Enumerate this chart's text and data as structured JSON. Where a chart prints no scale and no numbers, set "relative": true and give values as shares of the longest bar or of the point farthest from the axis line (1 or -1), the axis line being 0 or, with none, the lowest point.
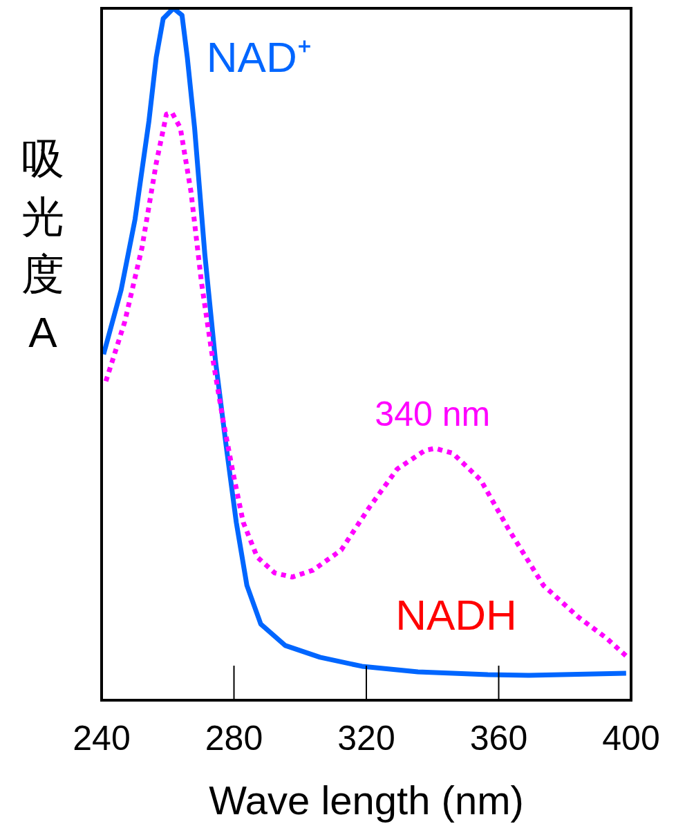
{
  "chart_data": {
    "type": "line",
    "relative": true,
    "xlabel": "Wave length (nm)",
    "ylabel": "吸光度 A",
    "xlim": [
      240,
      400
    ],
    "xticks": [
      240,
      280,
      320,
      360,
      400
    ],
    "grid": false,
    "legend": false,
    "series": [
      {
        "name": "NAD⁺",
        "color": "#0066ff",
        "line_style": "solid",
        "x": [
          240.6,
          245.9,
          250.1,
          254.3,
          256.5,
          258.6,
          261.7,
          264.3,
          265.9,
          268.1,
          271.2,
          274.4,
          277.6,
          280.7,
          283.9,
          288.1,
          295.5,
          306,
          318.7,
          335.6,
          356.7,
          369.3,
          398.5
        ],
        "values": [
          0.5,
          0.593,
          0.695,
          0.837,
          0.929,
          0.985,
          1.0,
          0.99,
          0.929,
          0.827,
          0.644,
          0.491,
          0.369,
          0.257,
          0.166,
          0.11,
          0.079,
          0.062,
          0.049,
          0.041,
          0.037,
          0.036,
          0.039
        ]
      },
      {
        "name": "NADH",
        "color": "#ff00ff",
        "line_style": "dotted",
        "x": [
          241.3,
          247,
          252.2,
          256.5,
          259.6,
          261.3,
          263.8,
          267,
          270.2,
          273.3,
          276.5,
          279.7,
          282.8,
          287,
          292.3,
          297.6,
          303.9,
          312.4,
          320.8,
          329.3,
          337.7,
          340.8,
          346.1,
          354.6,
          363,
          373.5,
          384.1,
          392.5,
          398.5
        ],
        "values": [
          0.461,
          0.547,
          0.654,
          0.776,
          0.847,
          0.849,
          0.827,
          0.735,
          0.603,
          0.502,
          0.41,
          0.329,
          0.257,
          0.207,
          0.184,
          0.178,
          0.188,
          0.217,
          0.278,
          0.334,
          0.361,
          0.364,
          0.357,
          0.318,
          0.247,
          0.166,
          0.12,
          0.09,
          0.064
        ]
      }
    ],
    "annotations": [
      {
        "text": "340 nm",
        "x": 340,
        "y": 0.364
      }
    ]
  }
}
